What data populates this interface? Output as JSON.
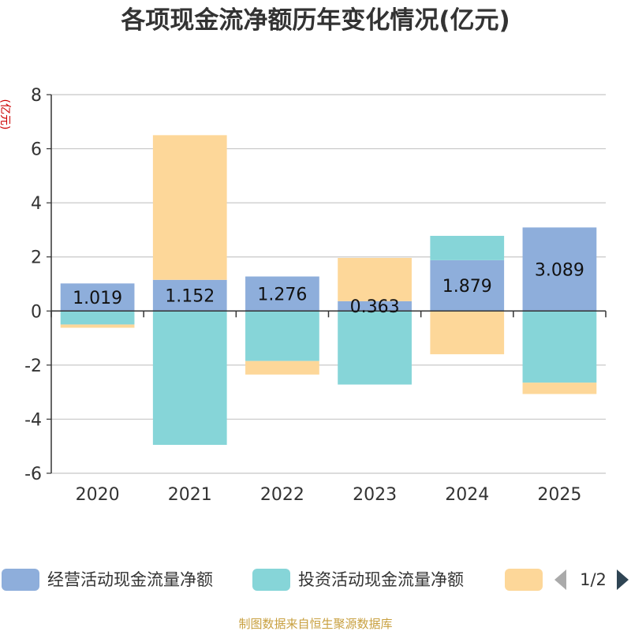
{
  "chart_data": {
    "type": "bar",
    "stacked": true,
    "title": "各项现金流净额历年变化情况(亿元)",
    "ylabel": "(亿元)",
    "xlabel": "",
    "ylim": [
      -6,
      8
    ],
    "yticks": [
      -6,
      -4,
      -2,
      0,
      2,
      4,
      6,
      8
    ],
    "grid": true,
    "categories": [
      "2020",
      "2021",
      "2022",
      "2023",
      "2024",
      "2025"
    ],
    "series": [
      {
        "name": "经营活动现金流量净额",
        "color": "#8eaedb",
        "values": [
          1.019,
          1.152,
          1.276,
          0.363,
          1.879,
          3.089
        ],
        "labels": [
          "1.019",
          "1.152",
          "1.276",
          "0.363",
          "1.879",
          "3.089"
        ]
      },
      {
        "name": "投资活动现金流量净额",
        "color": "#86d5d8",
        "values": [
          -0.5,
          -4.95,
          -1.85,
          -2.72,
          0.9,
          -2.65
        ]
      },
      {
        "name": "",
        "color": "#fdd799",
        "values": [
          -0.12,
          5.35,
          -0.5,
          1.6,
          -1.6,
          -0.42
        ]
      }
    ],
    "legend": {
      "position": "bottom",
      "page": "1/2"
    }
  },
  "source": "制图数据来自恒生聚源数据库"
}
